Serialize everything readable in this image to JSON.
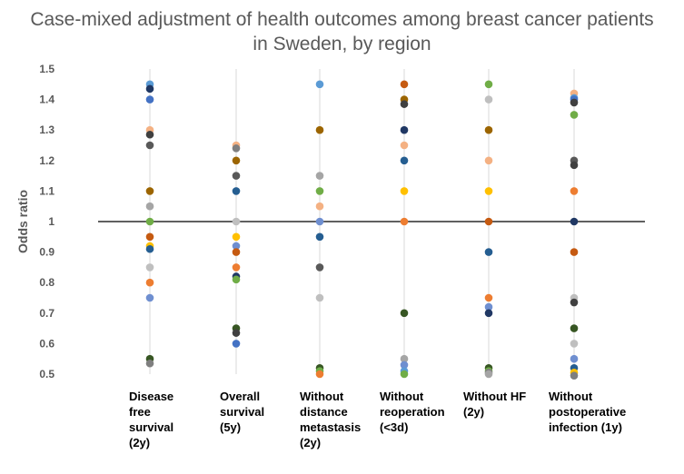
{
  "chart_data": {
    "type": "scatter",
    "title_lines": [
      "Case-mixed adjustment of health outcomes among breast cancer patients",
      "in Sweden, by region"
    ],
    "ylabel": "Odds ratio",
    "xlabel": "",
    "ylim": [
      0.5,
      1.5
    ],
    "yticks": [
      "0.5",
      "0.6",
      "0.7",
      "0.8",
      "0.9",
      "1",
      "1.1",
      "1.2",
      "1.3",
      "1.4",
      "1.5"
    ],
    "reference_line": 1,
    "grid": "vertical",
    "legend": "none",
    "categories": [
      "Disease\nfree\nsurvival\n(2y)",
      "Overall\nsurvival\n(5y)",
      "Without\ndistance\nmetastasis\n(2y)",
      "Without\nreoperation\n(<3d)",
      "Without HF\n(2y)",
      "Without\npostoperative\ninfection (1y)"
    ],
    "points": [
      [
        {
          "y": 1.45,
          "color": "#5b9bd5"
        },
        {
          "y": 1.435,
          "color": "#203864"
        },
        {
          "y": 1.4,
          "color": "#4472c4"
        },
        {
          "y": 1.3,
          "color": "#f4b183"
        },
        {
          "y": 1.285,
          "color": "#404040"
        },
        {
          "y": 1.25,
          "color": "#595959"
        },
        {
          "y": 1.1,
          "color": "#9c6500"
        },
        {
          "y": 1.05,
          "color": "#a5a5a5"
        },
        {
          "y": 1.0,
          "color": "#70ad47"
        },
        {
          "y": 0.95,
          "color": "#c55a11"
        },
        {
          "y": 0.92,
          "color": "#ffc000"
        },
        {
          "y": 0.91,
          "color": "#255e91"
        },
        {
          "y": 0.85,
          "color": "#bfbfbf"
        },
        {
          "y": 0.8,
          "color": "#ed7d31"
        },
        {
          "y": 0.75,
          "color": "#6f8fd0"
        },
        {
          "y": 0.55,
          "color": "#375623"
        },
        {
          "y": 0.535,
          "color": "#7f7f7f"
        }
      ],
      [
        {
          "y": 1.25,
          "color": "#f4b183"
        },
        {
          "y": 1.24,
          "color": "#7f7f7f"
        },
        {
          "y": 1.2,
          "color": "#9c6500"
        },
        {
          "y": 1.15,
          "color": "#595959"
        },
        {
          "y": 1.1,
          "color": "#255e91"
        },
        {
          "y": 1.0,
          "color": "#bfbfbf"
        },
        {
          "y": 0.95,
          "color": "#ffc000"
        },
        {
          "y": 0.92,
          "color": "#6f8fd0"
        },
        {
          "y": 0.9,
          "color": "#c55a11"
        },
        {
          "y": 0.85,
          "color": "#ed7d31"
        },
        {
          "y": 0.82,
          "color": "#203864"
        },
        {
          "y": 0.81,
          "color": "#70ad47"
        },
        {
          "y": 0.65,
          "color": "#375623"
        },
        {
          "y": 0.635,
          "color": "#404040"
        },
        {
          "y": 0.6,
          "color": "#4472c4"
        }
      ],
      [
        {
          "y": 1.45,
          "color": "#5b9bd5"
        },
        {
          "y": 1.3,
          "color": "#9c6500"
        },
        {
          "y": 1.15,
          "color": "#a5a5a5"
        },
        {
          "y": 1.1,
          "color": "#70ad47"
        },
        {
          "y": 1.05,
          "color": "#f4b183"
        },
        {
          "y": 1.0,
          "color": "#6f8fd0"
        },
        {
          "y": 0.95,
          "color": "#255e91"
        },
        {
          "y": 0.85,
          "color": "#595959"
        },
        {
          "y": 0.75,
          "color": "#bfbfbf"
        },
        {
          "y": 0.52,
          "color": "#375623"
        },
        {
          "y": 0.51,
          "color": "#70ad47"
        },
        {
          "y": 0.5,
          "color": "#ed7d31"
        }
      ],
      [
        {
          "y": 1.45,
          "color": "#c55a11"
        },
        {
          "y": 1.4,
          "color": "#9c6500"
        },
        {
          "y": 1.385,
          "color": "#404040"
        },
        {
          "y": 1.3,
          "color": "#203864"
        },
        {
          "y": 1.25,
          "color": "#f4b183"
        },
        {
          "y": 1.2,
          "color": "#255e91"
        },
        {
          "y": 1.1,
          "color": "#ffc000"
        },
        {
          "y": 1.0,
          "color": "#ed7d31"
        },
        {
          "y": 0.7,
          "color": "#375623"
        },
        {
          "y": 0.55,
          "color": "#a5a5a5"
        },
        {
          "y": 0.53,
          "color": "#6f8fd0"
        },
        {
          "y": 0.51,
          "color": "#5b9bd5"
        },
        {
          "y": 0.5,
          "color": "#70ad47"
        }
      ],
      [
        {
          "y": 1.45,
          "color": "#70ad47"
        },
        {
          "y": 1.4,
          "color": "#bfbfbf"
        },
        {
          "y": 1.3,
          "color": "#9c6500"
        },
        {
          "y": 1.2,
          "color": "#f4b183"
        },
        {
          "y": 1.1,
          "color": "#ffc000"
        },
        {
          "y": 1.0,
          "color": "#c55a11"
        },
        {
          "y": 0.9,
          "color": "#255e91"
        },
        {
          "y": 0.75,
          "color": "#ed7d31"
        },
        {
          "y": 0.72,
          "color": "#6f8fd0"
        },
        {
          "y": 0.7,
          "color": "#203864"
        },
        {
          "y": 0.52,
          "color": "#375623"
        },
        {
          "y": 0.51,
          "color": "#70ad47"
        },
        {
          "y": 0.505,
          "color": "#7f7f7f"
        },
        {
          "y": 0.5,
          "color": "#a5a5a5"
        }
      ],
      [
        {
          "y": 1.42,
          "color": "#f4b183"
        },
        {
          "y": 1.405,
          "color": "#5b9bd5"
        },
        {
          "y": 1.4,
          "color": "#4472c4"
        },
        {
          "y": 1.39,
          "color": "#404040"
        },
        {
          "y": 1.35,
          "color": "#70ad47"
        },
        {
          "y": 1.2,
          "color": "#595959"
        },
        {
          "y": 1.185,
          "color": "#404040"
        },
        {
          "y": 1.1,
          "color": "#ed7d31"
        },
        {
          "y": 1.0,
          "color": "#203864"
        },
        {
          "y": 0.9,
          "color": "#c55a11"
        },
        {
          "y": 0.75,
          "color": "#bfbfbf"
        },
        {
          "y": 0.735,
          "color": "#404040"
        },
        {
          "y": 0.65,
          "color": "#375623"
        },
        {
          "y": 0.6,
          "color": "#bfbfbf"
        },
        {
          "y": 0.55,
          "color": "#6f8fd0"
        },
        {
          "y": 0.52,
          "color": "#255e91"
        },
        {
          "y": 0.505,
          "color": "#ffc000"
        },
        {
          "y": 0.495,
          "color": "#7f7f7f"
        }
      ]
    ]
  }
}
